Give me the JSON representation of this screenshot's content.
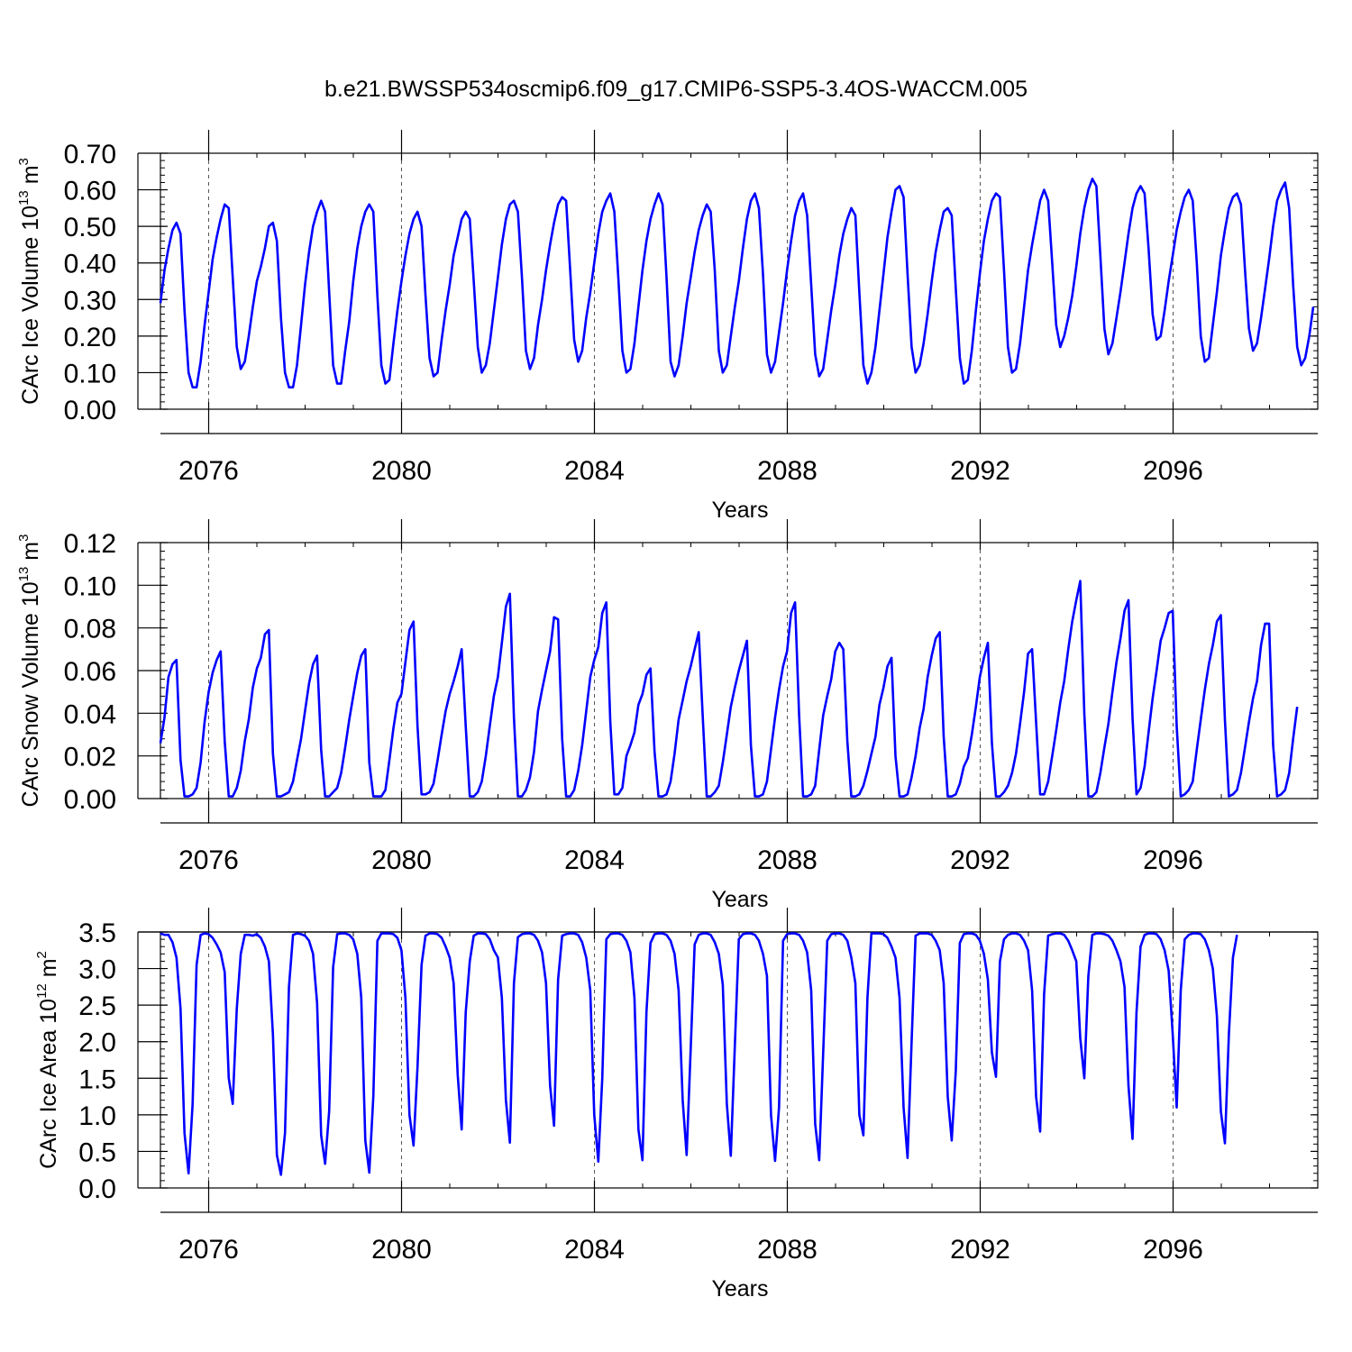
{
  "title": "b.e21.BWSSP534oscmip6.f09_g17.CMIP6-SSP5-3.4OS-WACCM.005",
  "chart_data": [
    {
      "type": "line",
      "name": "ice-volume",
      "xlabel": "Years",
      "ylabel_main": "CArc Ice Volume 10",
      "ylabel_sup": "13",
      "ylabel_unit": " m",
      "ylabel_unit_sup": "3",
      "xlim": [
        2075.0,
        2099.0
      ],
      "ylim": [
        0.0,
        0.7
      ],
      "x_ticks": [
        2076,
        2080,
        2084,
        2088,
        2092,
        2096
      ],
      "x_tick_labels": [
        "2076",
        "2080",
        "2084",
        "2088",
        "2092",
        "2096"
      ],
      "y_ticks": [
        0.0,
        0.1,
        0.2,
        0.3,
        0.4,
        0.5,
        0.6,
        0.7
      ],
      "y_tick_labels": [
        "0.00",
        "0.10",
        "0.20",
        "0.30",
        "0.40",
        "0.50",
        "0.60",
        "0.70"
      ],
      "y_minor_step": 0.02,
      "color": "#0000ff",
      "x_start": 2075.0,
      "x_step": 0.0833,
      "values": [
        0.29,
        0.38,
        0.44,
        0.49,
        0.51,
        0.48,
        0.27,
        0.1,
        0.06,
        0.06,
        0.13,
        0.23,
        0.32,
        0.41,
        0.47,
        0.52,
        0.56,
        0.55,
        0.36,
        0.17,
        0.11,
        0.13,
        0.2,
        0.28,
        0.35,
        0.39,
        0.44,
        0.5,
        0.51,
        0.46,
        0.25,
        0.1,
        0.06,
        0.06,
        0.12,
        0.23,
        0.34,
        0.43,
        0.5,
        0.54,
        0.57,
        0.54,
        0.32,
        0.12,
        0.07,
        0.07,
        0.16,
        0.24,
        0.35,
        0.44,
        0.5,
        0.54,
        0.56,
        0.54,
        0.31,
        0.12,
        0.07,
        0.08,
        0.18,
        0.27,
        0.35,
        0.42,
        0.48,
        0.52,
        0.54,
        0.5,
        0.31,
        0.14,
        0.09,
        0.1,
        0.19,
        0.27,
        0.34,
        0.42,
        0.47,
        0.52,
        0.54,
        0.52,
        0.35,
        0.17,
        0.1,
        0.12,
        0.18,
        0.27,
        0.36,
        0.45,
        0.52,
        0.56,
        0.57,
        0.54,
        0.36,
        0.16,
        0.11,
        0.14,
        0.23,
        0.3,
        0.38,
        0.45,
        0.51,
        0.56,
        0.58,
        0.57,
        0.38,
        0.19,
        0.13,
        0.16,
        0.25,
        0.32,
        0.4,
        0.48,
        0.54,
        0.57,
        0.59,
        0.54,
        0.36,
        0.16,
        0.1,
        0.11,
        0.18,
        0.28,
        0.38,
        0.46,
        0.52,
        0.56,
        0.59,
        0.56,
        0.36,
        0.13,
        0.09,
        0.12,
        0.2,
        0.29,
        0.36,
        0.43,
        0.49,
        0.53,
        0.56,
        0.54,
        0.38,
        0.16,
        0.1,
        0.12,
        0.2,
        0.28,
        0.35,
        0.44,
        0.52,
        0.57,
        0.59,
        0.55,
        0.37,
        0.15,
        0.1,
        0.13,
        0.21,
        0.29,
        0.38,
        0.46,
        0.53,
        0.57,
        0.59,
        0.53,
        0.34,
        0.15,
        0.09,
        0.11,
        0.19,
        0.27,
        0.34,
        0.42,
        0.48,
        0.52,
        0.55,
        0.53,
        0.32,
        0.12,
        0.07,
        0.1,
        0.17,
        0.27,
        0.37,
        0.47,
        0.54,
        0.6,
        0.61,
        0.58,
        0.37,
        0.17,
        0.1,
        0.12,
        0.18,
        0.26,
        0.35,
        0.43,
        0.49,
        0.54,
        0.55,
        0.53,
        0.33,
        0.14,
        0.07,
        0.08,
        0.16,
        0.27,
        0.37,
        0.46,
        0.52,
        0.57,
        0.59,
        0.58,
        0.38,
        0.17,
        0.1,
        0.11,
        0.18,
        0.28,
        0.38,
        0.45,
        0.51,
        0.57,
        0.6,
        0.57,
        0.4,
        0.23,
        0.17,
        0.2,
        0.25,
        0.31,
        0.39,
        0.48,
        0.55,
        0.6,
        0.63,
        0.61,
        0.42,
        0.22,
        0.15,
        0.18,
        0.25,
        0.32,
        0.4,
        0.48,
        0.55,
        0.59,
        0.61,
        0.59,
        0.44,
        0.26,
        0.19,
        0.2,
        0.27,
        0.35,
        0.42,
        0.49,
        0.54,
        0.58,
        0.6,
        0.57,
        0.4,
        0.2,
        0.13,
        0.14,
        0.23,
        0.32,
        0.42,
        0.49,
        0.55,
        0.58,
        0.59,
        0.56,
        0.38,
        0.22,
        0.16,
        0.18,
        0.25,
        0.33,
        0.41,
        0.5,
        0.57,
        0.6,
        0.62,
        0.55,
        0.34,
        0.17,
        0.12,
        0.14,
        0.2,
        0.28
      ]
    },
    {
      "type": "line",
      "name": "snow-volume",
      "xlabel": "Years",
      "ylabel_main": "CArc Snow Volume 10",
      "ylabel_sup": "13",
      "ylabel_unit": " m",
      "ylabel_unit_sup": "3",
      "xlim": [
        2075.0,
        2099.0
      ],
      "ylim": [
        0.0,
        0.12
      ],
      "x_ticks": [
        2076,
        2080,
        2084,
        2088,
        2092,
        2096
      ],
      "x_tick_labels": [
        "2076",
        "2080",
        "2084",
        "2088",
        "2092",
        "2096"
      ],
      "y_ticks": [
        0.0,
        0.02,
        0.04,
        0.06,
        0.08,
        0.1,
        0.12
      ],
      "y_tick_labels": [
        "0.00",
        "0.02",
        "0.04",
        "0.06",
        "0.08",
        "0.10",
        "0.12"
      ],
      "y_minor_step": 0.004,
      "color": "#0000ff",
      "x_start": 2075.0,
      "x_step": 0.0833,
      "values": [
        0.026,
        0.038,
        0.057,
        0.063,
        0.065,
        0.018,
        0.001,
        0.001,
        0.002,
        0.005,
        0.017,
        0.036,
        0.05,
        0.059,
        0.065,
        0.069,
        0.027,
        0.001,
        0.001,
        0.005,
        0.013,
        0.027,
        0.037,
        0.052,
        0.061,
        0.066,
        0.077,
        0.079,
        0.021,
        0.001,
        0.001,
        0.002,
        0.003,
        0.008,
        0.018,
        0.028,
        0.041,
        0.054,
        0.063,
        0.067,
        0.023,
        0.001,
        0.001,
        0.003,
        0.005,
        0.012,
        0.024,
        0.037,
        0.048,
        0.059,
        0.067,
        0.07,
        0.017,
        0.001,
        0.001,
        0.001,
        0.004,
        0.018,
        0.033,
        0.045,
        0.049,
        0.064,
        0.079,
        0.083,
        0.034,
        0.002,
        0.002,
        0.003,
        0.007,
        0.018,
        0.03,
        0.041,
        0.049,
        0.055,
        0.062,
        0.07,
        0.034,
        0.001,
        0.001,
        0.003,
        0.008,
        0.02,
        0.034,
        0.048,
        0.057,
        0.073,
        0.09,
        0.096,
        0.038,
        0.001,
        0.001,
        0.004,
        0.01,
        0.022,
        0.041,
        0.051,
        0.06,
        0.069,
        0.085,
        0.084,
        0.028,
        0.001,
        0.001,
        0.004,
        0.013,
        0.025,
        0.041,
        0.057,
        0.065,
        0.071,
        0.087,
        0.092,
        0.036,
        0.002,
        0.002,
        0.005,
        0.02,
        0.025,
        0.031,
        0.044,
        0.049,
        0.058,
        0.061,
        0.022,
        0.001,
        0.001,
        0.002,
        0.008,
        0.021,
        0.037,
        0.046,
        0.055,
        0.062,
        0.07,
        0.078,
        0.039,
        0.001,
        0.001,
        0.003,
        0.006,
        0.017,
        0.03,
        0.043,
        0.052,
        0.06,
        0.067,
        0.074,
        0.025,
        0.001,
        0.001,
        0.002,
        0.008,
        0.023,
        0.038,
        0.051,
        0.062,
        0.069,
        0.087,
        0.092,
        0.039,
        0.001,
        0.001,
        0.002,
        0.006,
        0.023,
        0.039,
        0.048,
        0.056,
        0.069,
        0.073,
        0.07,
        0.027,
        0.001,
        0.001,
        0.002,
        0.006,
        0.013,
        0.021,
        0.029,
        0.044,
        0.052,
        0.062,
        0.066,
        0.02,
        0.001,
        0.001,
        0.002,
        0.01,
        0.02,
        0.033,
        0.042,
        0.057,
        0.067,
        0.075,
        0.078,
        0.029,
        0.001,
        0.001,
        0.002,
        0.007,
        0.015,
        0.019,
        0.03,
        0.043,
        0.057,
        0.066,
        0.073,
        0.026,
        0.001,
        0.001,
        0.003,
        0.006,
        0.012,
        0.021,
        0.035,
        0.05,
        0.068,
        0.07,
        0.036,
        0.002,
        0.002,
        0.008,
        0.02,
        0.032,
        0.045,
        0.055,
        0.07,
        0.083,
        0.093,
        0.102,
        0.04,
        0.001,
        0.001,
        0.003,
        0.012,
        0.024,
        0.035,
        0.05,
        0.064,
        0.075,
        0.088,
        0.093,
        0.038,
        0.002,
        0.005,
        0.015,
        0.031,
        0.047,
        0.06,
        0.074,
        0.08,
        0.087,
        0.088,
        0.034,
        0.001,
        0.002,
        0.004,
        0.008,
        0.023,
        0.037,
        0.051,
        0.063,
        0.072,
        0.083,
        0.086,
        0.037,
        0.001,
        0.002,
        0.004,
        0.012,
        0.024,
        0.036,
        0.047,
        0.055,
        0.072,
        0.082,
        0.082,
        0.025,
        0.001,
        0.002,
        0.004,
        0.012,
        0.028,
        0.043
      ]
    },
    {
      "type": "line",
      "name": "ice-area",
      "xlabel": "Years",
      "ylabel_main": "CArc Ice Area 10",
      "ylabel_sup": "12",
      "ylabel_unit": " m",
      "ylabel_unit_sup": "2",
      "xlim": [
        2075.0,
        2099.0
      ],
      "ylim": [
        0.0,
        3.5
      ],
      "x_ticks": [
        2076,
        2080,
        2084,
        2088,
        2092,
        2096
      ],
      "x_tick_labels": [
        "2076",
        "2080",
        "2084",
        "2088",
        "2092",
        "2096"
      ],
      "y_ticks": [
        0.0,
        0.5,
        1.0,
        1.5,
        2.0,
        2.5,
        3.0,
        3.5
      ],
      "y_tick_labels": [
        "0.0",
        "0.5",
        "1.0",
        "1.5",
        "2.0",
        "2.5",
        "3.0",
        "3.5"
      ],
      "y_minor_step": 0.1,
      "h_reference": 3.5,
      "color": "#0000ff",
      "x_start": 2075.0,
      "x_step": 0.0833,
      "values": [
        3.48,
        3.46,
        3.46,
        3.36,
        3.15,
        2.45,
        0.75,
        0.2,
        1.15,
        3.05,
        3.46,
        3.48,
        3.47,
        3.42,
        3.33,
        3.22,
        2.95,
        1.5,
        1.15,
        2.45,
        3.2,
        3.46,
        3.46,
        3.45,
        3.47,
        3.42,
        3.3,
        3.1,
        2.1,
        0.45,
        0.18,
        0.75,
        2.75,
        3.46,
        3.48,
        3.47,
        3.45,
        3.38,
        3.2,
        2.53,
        0.72,
        0.33,
        1.05,
        3.02,
        3.47,
        3.48,
        3.48,
        3.46,
        3.4,
        3.2,
        2.6,
        0.65,
        0.21,
        1.25,
        3.38,
        3.48,
        3.48,
        3.48,
        3.47,
        3.42,
        3.25,
        2.6,
        1.0,
        0.58,
        1.65,
        3.05,
        3.45,
        3.48,
        3.48,
        3.47,
        3.42,
        3.3,
        3.15,
        2.8,
        1.55,
        0.8,
        2.4,
        3.1,
        3.45,
        3.48,
        3.48,
        3.47,
        3.4,
        3.25,
        3.15,
        2.6,
        1.2,
        0.62,
        2.8,
        3.43,
        3.47,
        3.48,
        3.48,
        3.46,
        3.38,
        3.22,
        2.8,
        1.4,
        0.85,
        2.85,
        3.45,
        3.47,
        3.48,
        3.48,
        3.46,
        3.36,
        3.15,
        2.7,
        1.0,
        0.36,
        1.5,
        3.4,
        3.47,
        3.48,
        3.48,
        3.46,
        3.38,
        3.22,
        2.6,
        0.8,
        0.38,
        2.4,
        3.35,
        3.47,
        3.48,
        3.48,
        3.46,
        3.38,
        3.2,
        2.7,
        1.2,
        0.45,
        1.9,
        3.33,
        3.46,
        3.48,
        3.48,
        3.46,
        3.36,
        3.2,
        2.78,
        1.15,
        0.44,
        1.95,
        3.4,
        3.47,
        3.48,
        3.48,
        3.46,
        3.38,
        3.2,
        2.9,
        1.0,
        0.37,
        1.1,
        3.38,
        3.47,
        3.48,
        3.48,
        3.46,
        3.38,
        3.22,
        2.7,
        0.88,
        0.38,
        1.85,
        3.38,
        3.47,
        3.48,
        3.48,
        3.46,
        3.38,
        3.15,
        2.8,
        1.0,
        0.72,
        2.6,
        3.48,
        3.48,
        3.48,
        3.47,
        3.42,
        3.3,
        3.15,
        2.6,
        1.1,
        0.41,
        2.0,
        3.45,
        3.48,
        3.48,
        3.48,
        3.46,
        3.38,
        3.25,
        2.8,
        1.25,
        0.65,
        1.6,
        3.35,
        3.47,
        3.48,
        3.48,
        3.46,
        3.38,
        3.2,
        2.85,
        1.85,
        1.52,
        3.1,
        3.4,
        3.46,
        3.48,
        3.48,
        3.46,
        3.38,
        3.25,
        2.7,
        1.25,
        0.77,
        2.65,
        3.45,
        3.47,
        3.48,
        3.48,
        3.46,
        3.38,
        3.25,
        3.1,
        2.05,
        1.5,
        2.9,
        3.46,
        3.48,
        3.48,
        3.47,
        3.45,
        3.38,
        3.25,
        3.1,
        2.75,
        1.4,
        0.67,
        2.4,
        3.3,
        3.46,
        3.48,
        3.48,
        3.47,
        3.4,
        3.25,
        2.97,
        2.1,
        1.1,
        2.7,
        3.4,
        3.46,
        3.48,
        3.48,
        3.47,
        3.4,
        3.25,
        3.0,
        2.35,
        1.05,
        0.61,
        2.1,
        3.15,
        3.46
      ]
    }
  ]
}
